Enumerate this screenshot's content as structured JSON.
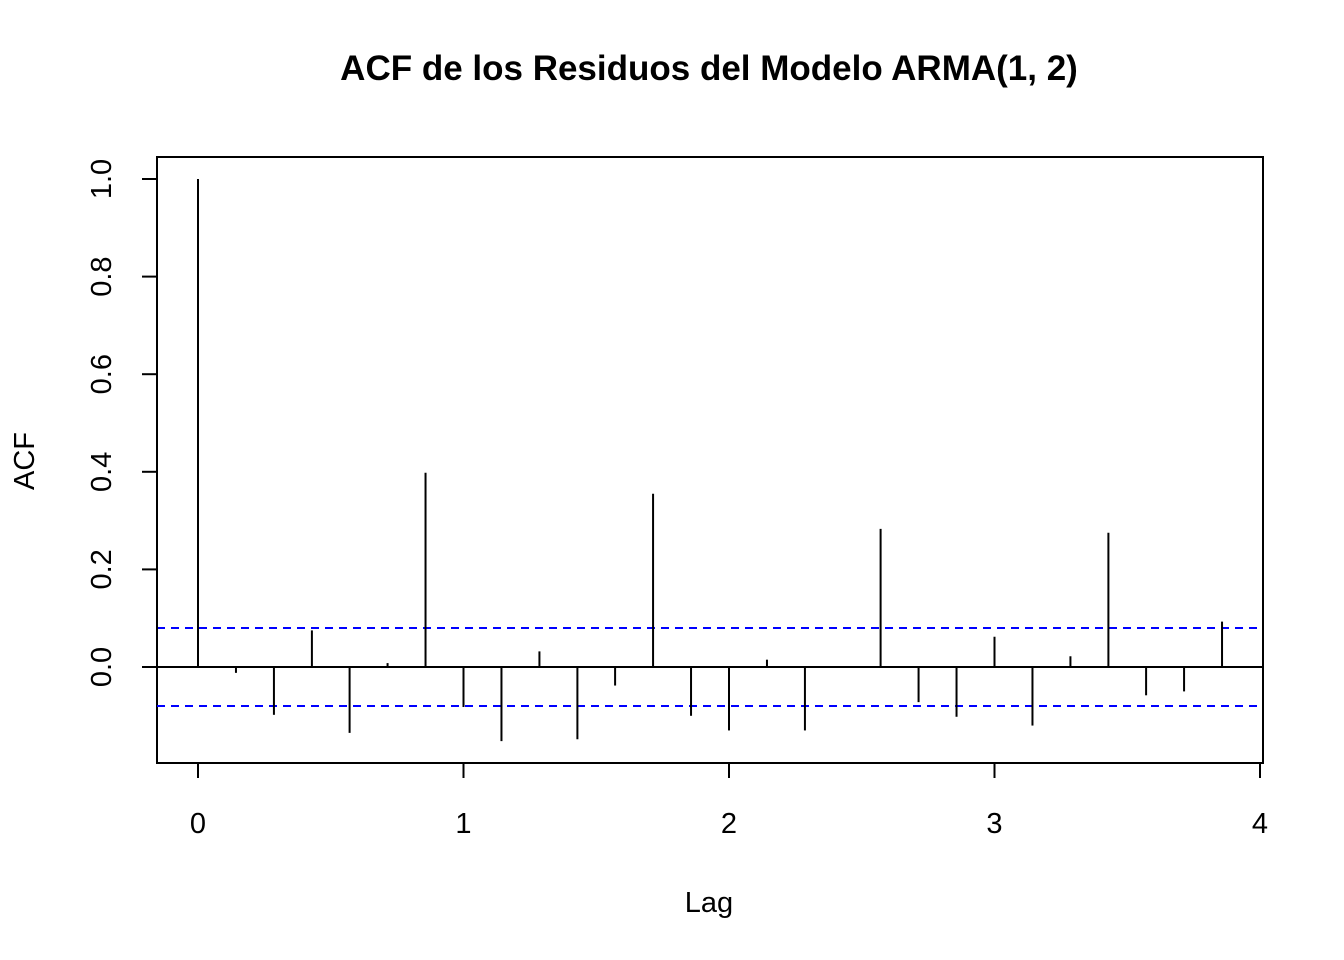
{
  "chart_data": {
    "type": "bar",
    "title": "ACF de los Residuos del Modelo ARMA(1, 2)",
    "xlabel": "Lag",
    "ylabel": "ACF",
    "xlim": [
      -0.15,
      4.0
    ],
    "ylim": [
      -0.2,
      1.05
    ],
    "x_ticks": [
      0,
      1,
      2,
      3,
      4
    ],
    "x_tick_labels": [
      "0",
      "1",
      "2",
      "3",
      "4"
    ],
    "y_ticks": [
      0.0,
      0.2,
      0.4,
      0.6,
      0.8,
      1.0
    ],
    "y_tick_labels": [
      "0.0",
      "0.2",
      "0.4",
      "0.6",
      "0.8",
      "1.0"
    ],
    "confidence_band": 0.08,
    "confidence_color": "#0000ff",
    "bar_color": "#000000",
    "grid": false,
    "lags": [
      0.0,
      0.143,
      0.286,
      0.429,
      0.571,
      0.714,
      0.857,
      1.0,
      1.143,
      1.286,
      1.429,
      1.571,
      1.714,
      1.857,
      2.0,
      2.143,
      2.286,
      2.429,
      2.571,
      2.714,
      2.857,
      3.0,
      3.143,
      3.286,
      3.429,
      3.571,
      3.714,
      3.857
    ],
    "values": [
      1.0,
      -0.012,
      -0.098,
      0.075,
      -0.135,
      0.008,
      0.398,
      -0.082,
      -0.152,
      0.032,
      -0.148,
      -0.038,
      0.355,
      -0.1,
      -0.13,
      0.015,
      -0.13,
      0.0,
      0.283,
      -0.072,
      -0.102,
      0.062,
      -0.12,
      0.022,
      0.275,
      -0.058,
      -0.05,
      0.093
    ]
  }
}
